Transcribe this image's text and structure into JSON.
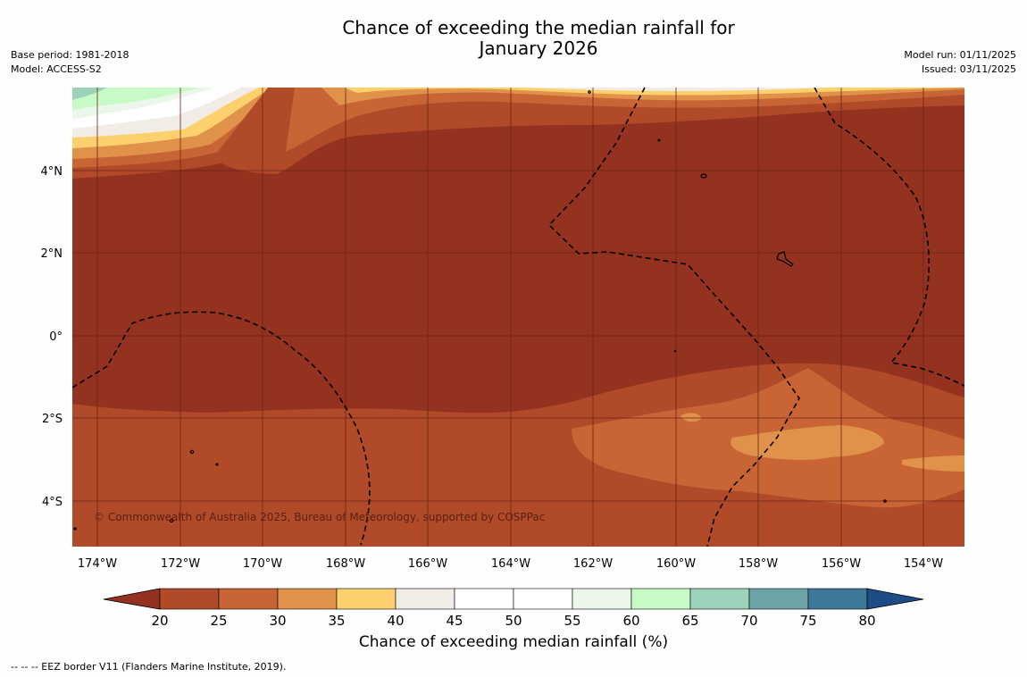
{
  "title": {
    "line1": "Chance of exceeding the median rainfall for",
    "line2": "January 2026"
  },
  "meta_left": {
    "base_period": "Base period: 1981-2018",
    "model": "Model: ACCESS-S2"
  },
  "meta_right": {
    "model_run": "Model run: 01/11/2025",
    "issued": "Issued: 03/11/2025"
  },
  "map": {
    "lon_labels": [
      "174°W",
      "172°W",
      "170°W",
      "168°W",
      "166°W",
      "164°W",
      "162°W",
      "160°W",
      "158°W",
      "156°W",
      "154°W"
    ],
    "lat_labels": [
      "4°N",
      "2°N",
      "0°",
      "2°S",
      "4°S"
    ],
    "copyright": "© Commonwealth of Australia 2025, Bureau of Meteorology, supported by COSPPac",
    "background_color": "#943220"
  },
  "legend": {
    "label": "Chance of exceeding median rainfall (%)",
    "ticks": [
      "20",
      "25",
      "30",
      "35",
      "40",
      "45",
      "50",
      "55",
      "60",
      "65",
      "70",
      "75",
      "80"
    ],
    "colors": [
      "#b04a28",
      "#c96435",
      "#e0924a",
      "#fdd06e",
      "#f1ece6",
      "#ffffff",
      "#ffffff",
      "#ebf7ea",
      "#c8fac8",
      "#9dd2ba",
      "#6da4a8",
      "#3e7898"
    ],
    "under_color": "#943220",
    "over_color": "#1e4c86"
  },
  "footnote": "--  --  -- EEZ border V11 (Flanders Marine Institute, 2019)."
}
